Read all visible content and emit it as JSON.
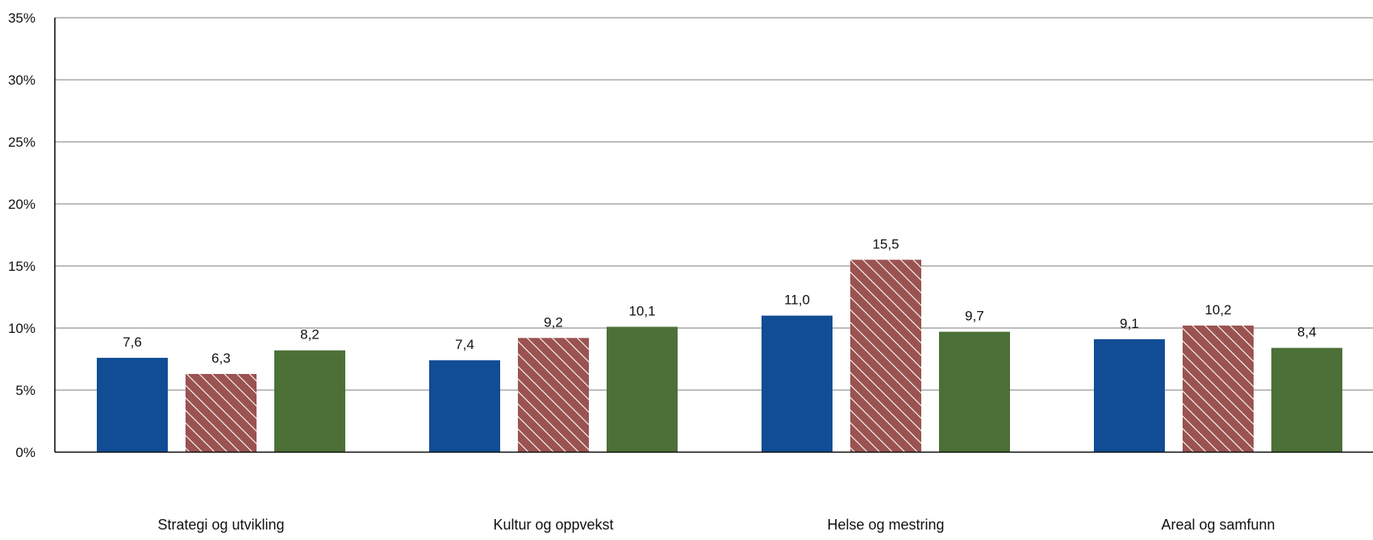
{
  "chart_data": {
    "type": "bar",
    "categories": [
      "Strategi og utvikling",
      "Kultur og oppvekst",
      "Helse og mestring",
      "Areal og samfunn"
    ],
    "series": [
      {
        "values": [
          7.6,
          7.4,
          11.0,
          9.1
        ],
        "labels": [
          "7,6",
          "7,4",
          "11,0",
          "9,1"
        ],
        "color": "#114d94",
        "pattern": "solid"
      },
      {
        "values": [
          6.3,
          9.2,
          15.5,
          10.2
        ],
        "labels": [
          "6,3",
          "9,2",
          "15,5",
          "10,2"
        ],
        "color": "#9a5350",
        "pattern": "diagonal-hatch"
      },
      {
        "values": [
          8.2,
          10.1,
          9.7,
          8.4
        ],
        "labels": [
          "8,2",
          "10,1",
          "9,7",
          "8,4"
        ],
        "color": "#4c7038",
        "pattern": "solid"
      }
    ],
    "yticks": [
      0,
      5,
      10,
      15,
      20,
      25,
      30,
      35
    ],
    "ytick_labels": [
      "0%",
      "5%",
      "10%",
      "15%",
      "20%",
      "25%",
      "30%",
      "35%"
    ],
    "ylim": [
      0,
      35
    ],
    "grid": true,
    "title": "",
    "xlabel": "",
    "ylabel": ""
  }
}
